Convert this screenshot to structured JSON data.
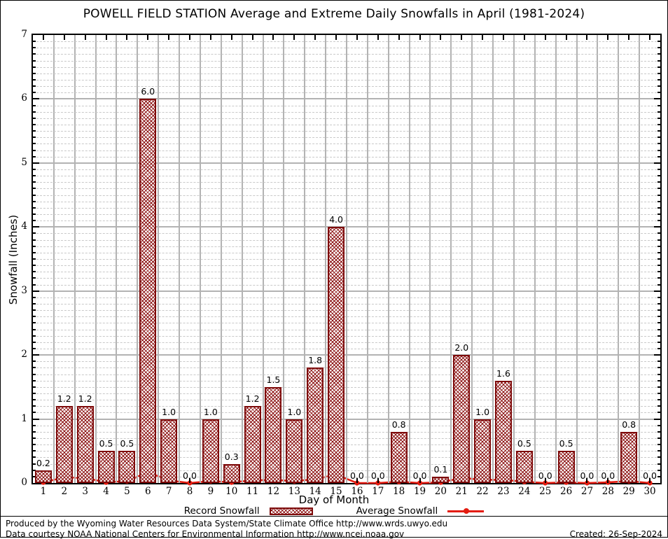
{
  "title": "POWELL FIELD STATION Average and Extreme Daily Snowfalls in April (1981-2024)",
  "axes": {
    "x_label": "Day of Month",
    "y_label": "Snowfall (Inches)",
    "y_ticks": [
      0,
      1,
      2,
      3,
      4,
      5,
      6,
      7
    ],
    "y_minor_step": 0.1,
    "ylim": [
      0,
      7
    ],
    "x_ticks": [
      1,
      2,
      3,
      4,
      5,
      6,
      7,
      8,
      9,
      10,
      11,
      12,
      13,
      14,
      15,
      16,
      17,
      18,
      19,
      20,
      21,
      22,
      23,
      24,
      25,
      26,
      27,
      28,
      29,
      30
    ]
  },
  "legend": {
    "record_label": "Record Snowfall",
    "average_label": "Average Snowfall",
    "position": "bottom"
  },
  "footer": {
    "line1": "Produced by the Wyoming Water Resources Data System/State Climate Office http://www.wrds.uwyo.edu",
    "line2": "Data courtesy NOAA National Centers for Environmental Information http://www.ncei.noaa.gov",
    "created": "Created: 26-Sep-2024"
  },
  "colors": {
    "bar_border": "#7e0a0a",
    "bar_hatch": "#8b1010",
    "average_line": "#e41c10",
    "grid_major": "#b3b3b3",
    "grid_minor": "#c9c9c9",
    "axis": "#000000"
  },
  "chart_data": {
    "type": "bar",
    "title": "POWELL FIELD STATION Average and Extreme Daily Snowfalls in April (1981-2024)",
    "xlabel": "Day of Month",
    "ylabel": "Snowfall (Inches)",
    "ylim": [
      0,
      7
    ],
    "grid": true,
    "legend_position": "bottom",
    "categories": [
      1,
      2,
      3,
      4,
      5,
      6,
      7,
      8,
      9,
      10,
      11,
      12,
      13,
      14,
      15,
      16,
      17,
      18,
      19,
      20,
      21,
      22,
      23,
      24,
      25,
      26,
      27,
      28,
      29,
      30
    ],
    "series": [
      {
        "name": "Record Snowfall",
        "type": "bar",
        "values": [
          0.2,
          1.2,
          1.2,
          0.5,
          0.5,
          6.0,
          1.0,
          0.0,
          1.0,
          0.3,
          1.2,
          1.5,
          1.0,
          1.8,
          4.0,
          0.0,
          0.0,
          0.8,
          0.0,
          0.1,
          2.0,
          1.0,
          1.6,
          0.5,
          0.0,
          0.5,
          0.0,
          0.0,
          0.8,
          0.0
        ],
        "labels_shown": true
      },
      {
        "name": "Average Snowfall",
        "type": "line",
        "values": [
          0.01,
          0.09,
          0.08,
          0.01,
          0.03,
          0.17,
          0.04,
          0.0,
          0.03,
          0.01,
          0.04,
          0.05,
          0.03,
          0.06,
          0.13,
          0.0,
          0.0,
          0.02,
          0.0,
          0.01,
          0.08,
          0.05,
          0.05,
          0.02,
          0.0,
          0.01,
          0.0,
          0.01,
          0.03,
          0.0
        ]
      }
    ]
  }
}
